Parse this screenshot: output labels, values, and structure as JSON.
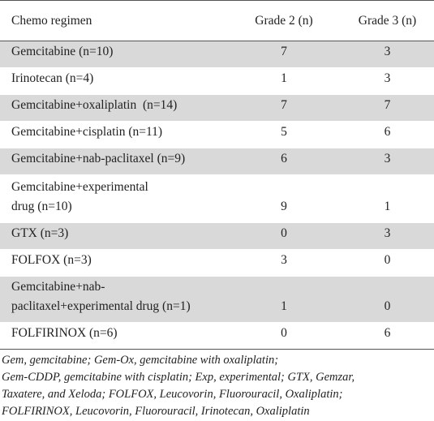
{
  "headers": [
    "Chemo regimen",
    "Grade 2 (n)",
    "Grade 3 (n)"
  ],
  "rows": [
    {
      "regimen": "Gemcitabine (n=10)",
      "grade2": "7",
      "grade3": "3"
    },
    {
      "regimen": "Irinotecan (n=4)",
      "grade2": "1",
      "grade3": "3"
    },
    {
      "regimen": "Gemcitabine+oxaliplatin  (n=14)",
      "grade2": "7",
      "grade3": "7"
    },
    {
      "regimen": "Gemcitabine+cisplatin (n=11)",
      "grade2": "5",
      "grade3": "6"
    },
    {
      "regimen": "Gemcitabine+nab-paclitaxel (n=9)",
      "grade2": "6",
      "grade3": "3"
    },
    {
      "regimen_lines": [
        "Gemcitabine+experimental",
        "drug (n=10)"
      ],
      "grade2": "9",
      "grade3": "1"
    },
    {
      "regimen": "GTX (n=3)",
      "grade2": "0",
      "grade3": "3"
    },
    {
      "regimen": "FOLFOX (n=3)",
      "grade2": "3",
      "grade3": "0"
    },
    {
      "regimen_lines": [
        "Gemcitabine+nab-",
        "paclitaxel+experimental drug (n=1)"
      ],
      "grade2": "1",
      "grade3": "0"
    },
    {
      "regimen": "FOLFIRINOX (n=6)",
      "grade2": "0",
      "grade3": "6"
    }
  ],
  "footnote": [
    "Gem, gemcitabine; Gem-Ox, gemcitabine with oxaliplatin;",
    "Gem-CDDP, gemcitabine with cisplatin; Exp, experimental; GTX, Gemzar,",
    "Taxatere, and Xeloda; FOLFOX, Leucovorin, Fluorouracil, Oxaliplatin;",
    "FOLFIRINOX, Leucovorin, Fluorouracil, Irinotecan, Oxaliplatin"
  ]
}
